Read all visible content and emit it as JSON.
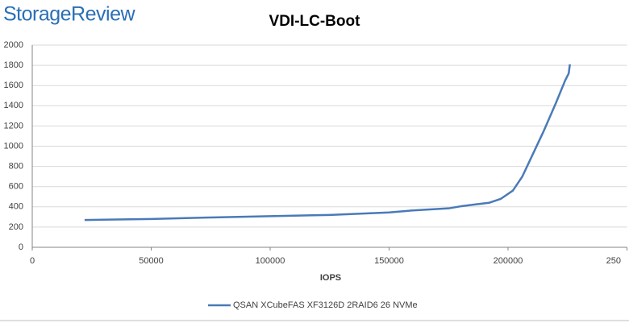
{
  "brand": "StorageReview",
  "chart_data": {
    "type": "line",
    "title": "VDI-LC-Boot",
    "x_label": "IOPS",
    "xlim": [
      0,
      250000
    ],
    "xticks": [
      0,
      50000,
      100000,
      150000,
      200000,
      {
        "value": 250000,
        "label": "250"
      }
    ],
    "ylim": [
      0,
      2000
    ],
    "yticks": [
      0,
      200,
      400,
      600,
      800,
      1000,
      1200,
      1400,
      1600,
      1800,
      2000
    ],
    "grid": true,
    "legend": "bottom",
    "series": [
      {
        "name": "QSAN XCubeFAS XF3126D 2RAID6 26 NVMe",
        "color": "#4a7ab8",
        "x": [
          22000,
          50000,
          75000,
          100000,
          125000,
          150000,
          160000,
          175000,
          180000,
          185000,
          192000,
          197000,
          202000,
          206000,
          210000,
          215000,
          220000,
          224000,
          225500,
          226000
        ],
        "values": [
          270,
          280,
          295,
          308,
          320,
          345,
          365,
          385,
          405,
          420,
          440,
          480,
          560,
          700,
          900,
          1150,
          1420,
          1650,
          1720,
          1810
        ]
      }
    ]
  }
}
